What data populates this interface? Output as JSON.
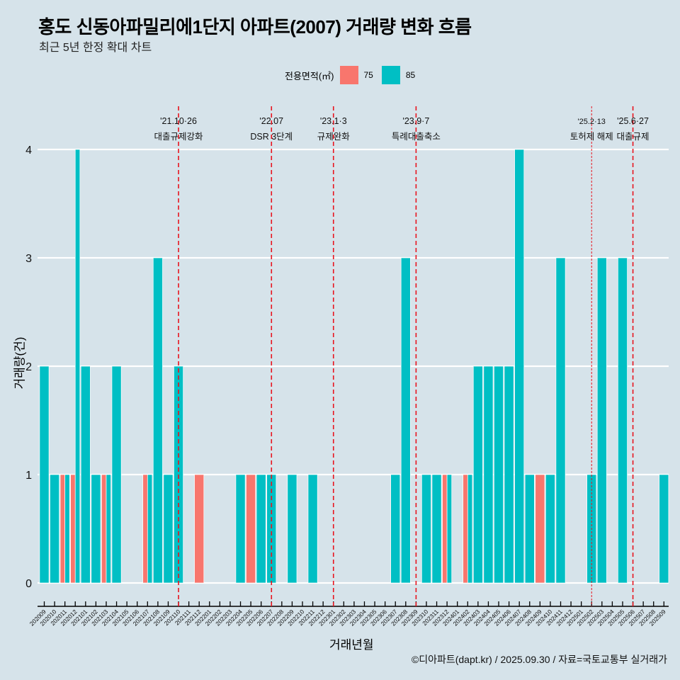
{
  "title": "홍도 신동아파밀리에1단지 아파트(2007) 거래량 변화 흐름",
  "subtitle": "최근 5년 한정 확대 차트",
  "legend": {
    "title": "전용면적(㎡)",
    "items": [
      {
        "label": "75",
        "color": "#F8766D"
      },
      {
        "label": "85",
        "color": "#00BFC4"
      }
    ]
  },
  "caption": "©디아파트(dapt.kr) / 2025.09.30 / 자료=국토교통부 실거래가",
  "chart_data": {
    "type": "bar",
    "bar_mode": "dodge",
    "title": "홍도 신동아파밀리에1단지 아파트(2007) 거래량 변화 흐름",
    "xlabel": "거래년월",
    "ylabel": "거래량(건)",
    "ylim": [
      0,
      4
    ],
    "yticks": [
      0,
      1,
      2,
      3,
      4
    ],
    "grid": true,
    "legend_position": "top",
    "categories": [
      "202009",
      "202010",
      "202011",
      "202012",
      "202101",
      "202102",
      "202103",
      "202104",
      "202105",
      "202106",
      "202107",
      "202108",
      "202109",
      "202110",
      "202111",
      "202112",
      "202201",
      "202202",
      "202203",
      "202204",
      "202205",
      "202206",
      "202207",
      "202208",
      "202209",
      "202210",
      "202211",
      "202212",
      "202301",
      "202302",
      "202303",
      "202304",
      "202305",
      "202306",
      "202307",
      "202308",
      "202309",
      "202310",
      "202311",
      "202312",
      "202401",
      "202402",
      "202403",
      "202404",
      "202405",
      "202406",
      "202407",
      "202408",
      "202409",
      "202410",
      "202411",
      "202412",
      "202501",
      "202502",
      "202503",
      "202504",
      "202505",
      "202506",
      "202507",
      "202508",
      "202509"
    ],
    "series": [
      {
        "name": "75",
        "color": "#F8766D",
        "values": [
          0,
          0,
          1,
          1,
          0,
          0,
          1,
          0,
          0,
          0,
          1,
          0,
          0,
          0,
          0,
          1,
          0,
          0,
          0,
          0,
          1,
          0,
          0,
          0,
          0,
          0,
          0,
          0,
          0,
          0,
          0,
          0,
          0,
          0,
          0,
          0,
          0,
          0,
          0,
          1,
          0,
          1,
          0,
          0,
          0,
          0,
          0,
          0,
          1,
          0,
          0,
          0,
          0,
          0,
          0,
          0,
          0,
          0,
          0,
          0,
          0
        ]
      },
      {
        "name": "85",
        "color": "#00BFC4",
        "values": [
          2,
          1,
          1,
          4,
          2,
          1,
          1,
          2,
          0,
          0,
          1,
          3,
          1,
          2,
          0,
          0,
          0,
          0,
          0,
          1,
          0,
          1,
          1,
          0,
          1,
          0,
          1,
          0,
          0,
          0,
          0,
          0,
          0,
          0,
          1,
          3,
          0,
          1,
          1,
          1,
          0,
          1,
          2,
          2,
          2,
          2,
          4,
          1,
          0,
          1,
          3,
          0,
          0,
          1,
          3,
          0,
          3,
          0,
          0,
          0,
          1
        ]
      }
    ],
    "annotations": [
      {
        "month": "202110",
        "date": "'21.10·26",
        "text": "대출규제강화",
        "style": "dashed"
      },
      {
        "month": "202207",
        "date": "'22.07",
        "text": "DSR 3단계",
        "style": "dashed"
      },
      {
        "month": "202301",
        "date": "'23.1·3",
        "text": "규제완화",
        "style": "dashed"
      },
      {
        "month": "202309",
        "date": "'23.9·7",
        "text": "특례대출축소",
        "style": "dashed"
      },
      {
        "month": "202502",
        "date": "'25.2·13",
        "text": "토허제 해제",
        "style": "dotted"
      },
      {
        "month": "202506",
        "date": "'25.6·27",
        "text": "대출규제",
        "style": "dashed"
      }
    ]
  }
}
